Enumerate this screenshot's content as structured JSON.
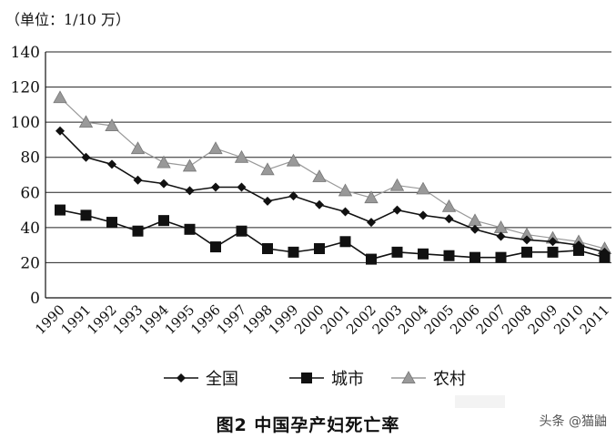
{
  "chart_data": {
    "type": "line",
    "title": "图2  中国孕产妇死亡率",
    "unit_label": "（单位：1/10 万）",
    "x": [
      "1990",
      "1991",
      "1992",
      "1993",
      "1994",
      "1995",
      "1996",
      "1997",
      "1998",
      "1999",
      "2000",
      "2001",
      "2002",
      "2003",
      "2004",
      "2005",
      "2006",
      "2007",
      "2008",
      "2009",
      "2010",
      "2011"
    ],
    "ylim": [
      0,
      140
    ],
    "yticks": [
      0,
      20,
      40,
      60,
      80,
      100,
      120,
      140
    ],
    "grid": true,
    "legend_position": "bottom",
    "series": [
      {
        "name": "全国",
        "marker": "diamond",
        "color": "#111111",
        "values": [
          95,
          80,
          76,
          67,
          65,
          61,
          63,
          63,
          55,
          58,
          53,
          49,
          43,
          50,
          47,
          45,
          39,
          35,
          33,
          32,
          30,
          26
        ]
      },
      {
        "name": "城市",
        "marker": "square",
        "color": "#111111",
        "values": [
          50,
          47,
          43,
          38,
          44,
          39,
          29,
          38,
          28,
          26,
          28,
          32,
          22,
          26,
          25,
          24,
          23,
          23,
          26,
          26,
          27,
          23
        ]
      },
      {
        "name": "农村",
        "marker": "triangle",
        "color": "#999999",
        "values": [
          114,
          100,
          98,
          85,
          77,
          75,
          85,
          80,
          73,
          78,
          69,
          61,
          57,
          64,
          62,
          52,
          44,
          40,
          36,
          34,
          32,
          28
        ]
      }
    ]
  },
  "watermark": "头条 @猫鼬"
}
